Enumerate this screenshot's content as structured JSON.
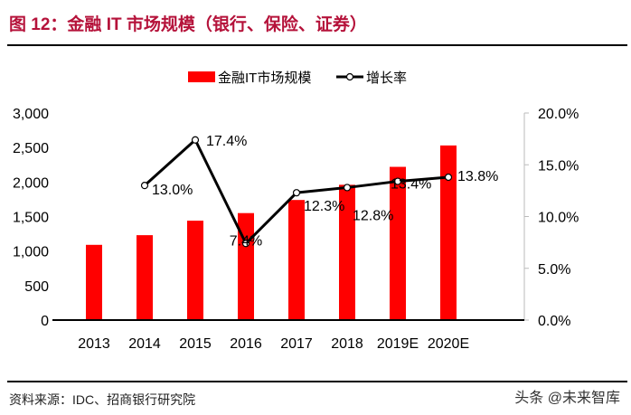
{
  "header": {
    "title": "图 12：金融 IT 市场规模（银行、保险、证券）"
  },
  "footer": {
    "source": "资料来源：IDC、招商银行研究院",
    "watermark": "头条 @未来智库"
  },
  "chart_data": {
    "type": "bar+line",
    "categories": [
      "2013",
      "2014",
      "2015",
      "2016",
      "2017",
      "2018",
      "2019E",
      "2020E"
    ],
    "series": [
      {
        "name": "金融IT市场规模",
        "type": "bar",
        "axis": "left",
        "color": "#ff0000",
        "values": [
          1090,
          1230,
          1440,
          1550,
          1740,
          1960,
          2220,
          2530
        ]
      },
      {
        "name": "增长率",
        "type": "line",
        "axis": "right",
        "color": "#000000",
        "values": [
          null,
          13.0,
          17.4,
          7.4,
          12.3,
          12.8,
          13.4,
          13.8
        ],
        "labels": [
          "",
          "13.0%",
          "17.4%",
          "7.4%",
          "12.3%",
          "12.8%",
          "13.4%",
          "13.8%"
        ]
      }
    ],
    "y_left": {
      "range": [
        0,
        3000
      ],
      "ticks": [
        "0",
        "500",
        "1,000",
        "1,500",
        "2,000",
        "2,500",
        "3,000"
      ]
    },
    "y_right": {
      "range": [
        0,
        20
      ],
      "ticks": [
        "0.0%",
        "5.0%",
        "10.0%",
        "15.0%",
        "20.0%"
      ]
    },
    "legend": {
      "placement": "top",
      "entries": [
        "金融IT市场规模",
        "增长率"
      ]
    },
    "grid": false
  }
}
